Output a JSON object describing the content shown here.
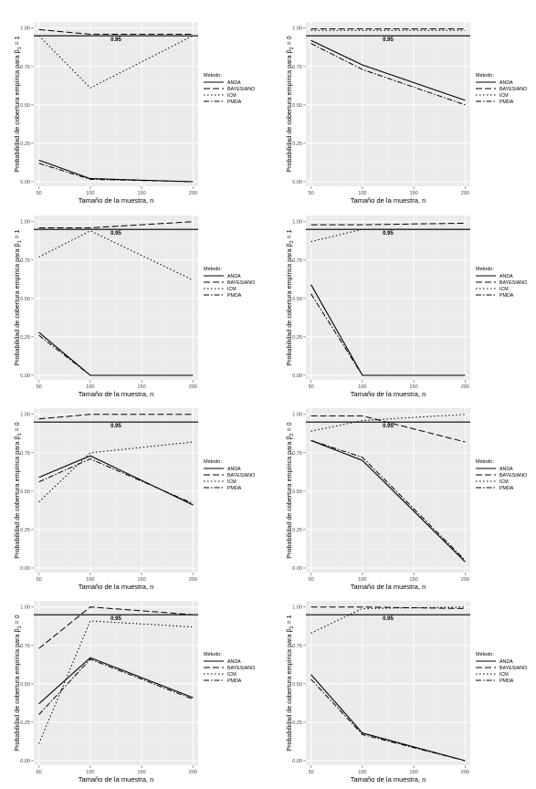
{
  "chart_data": [
    {
      "type": "line",
      "ylabel_pre": "Probabilidad de cobertura empírica para ",
      "ylabel_sym": "β",
      "ylabel_sub": "1",
      "ylabel_post": " = 1",
      "xlabel": "Tamaño de la muestra, n",
      "x": [
        50,
        100,
        200
      ],
      "xticks": [
        50,
        100,
        150,
        200
      ],
      "yticks": [
        "0.00",
        "0.25",
        "0.50",
        "0.75",
        "1.00"
      ],
      "ylim": [
        0,
        1
      ],
      "reference_line": {
        "value": 0.95,
        "label": "0.95"
      },
      "legend": {
        "title": "Método:",
        "entries": [
          "ANDA",
          "BAYESIANO",
          "ICM",
          "PMDA"
        ]
      },
      "series": [
        {
          "name": "ANDA",
          "values": [
            0.14,
            0.02,
            0.0
          ]
        },
        {
          "name": "BAYESIANO",
          "values": [
            0.99,
            0.96,
            0.96
          ]
        },
        {
          "name": "ICM",
          "values": [
            0.95,
            0.61,
            0.95
          ]
        },
        {
          "name": "PMDA",
          "values": [
            0.12,
            0.015,
            0.0
          ]
        }
      ]
    },
    {
      "type": "line",
      "ylabel_pre": "Probabilidad de cobertura empírica para ",
      "ylabel_sym": "β",
      "ylabel_sub": "2",
      "ylabel_post": " = 0",
      "xlabel": "Tamaño de la muestra, n",
      "x": [
        50,
        100,
        200
      ],
      "xticks": [
        50,
        100,
        150,
        200
      ],
      "yticks": [
        "0.00",
        "0.25",
        "0.50",
        "0.75",
        "1.00"
      ],
      "ylim": [
        0,
        1
      ],
      "reference_line": {
        "value": 0.95,
        "label": "0.95"
      },
      "legend": {
        "title": "Método:",
        "entries": [
          "ANDA",
          "BAYESIANO",
          "ICM",
          "PMDA"
        ]
      },
      "series": [
        {
          "name": "ANDA",
          "values": [
            0.92,
            0.76,
            0.53
          ]
        },
        {
          "name": "BAYESIANO",
          "values": [
            0.995,
            0.995,
            0.995
          ]
        },
        {
          "name": "ICM",
          "values": [
            0.985,
            0.985,
            0.985
          ]
        },
        {
          "name": "PMDA",
          "values": [
            0.9,
            0.73,
            0.5
          ]
        }
      ]
    },
    {
      "type": "line",
      "ylabel_pre": "Probabilidad de cobertura empírica para ",
      "ylabel_sym": "β",
      "ylabel_sub": "1",
      "ylabel_post": " = 1",
      "xlabel": "Tamaño de la muestra, n",
      "x": [
        50,
        100,
        200
      ],
      "xticks": [
        50,
        100,
        150,
        200
      ],
      "yticks": [
        "0.00",
        "0.25",
        "0.50",
        "0.75",
        "1.00"
      ],
      "ylim": [
        0,
        1
      ],
      "reference_line": {
        "value": 0.95,
        "label": "0.95"
      },
      "legend": {
        "title": "Método:",
        "entries": [
          "ANDA",
          "BAYESIANO",
          "ICM",
          "PMDA"
        ]
      },
      "series": [
        {
          "name": "ANDA",
          "values": [
            0.28,
            0.0,
            0.0
          ]
        },
        {
          "name": "BAYESIANO",
          "values": [
            0.96,
            0.96,
            1.0
          ]
        },
        {
          "name": "ICM",
          "values": [
            0.77,
            0.94,
            0.62
          ]
        },
        {
          "name": "PMDA",
          "values": [
            0.26,
            0.0,
            0.0
          ]
        }
      ]
    },
    {
      "type": "line",
      "ylabel_pre": "Probabilidad de cobertura empírica para ",
      "ylabel_sym": "β",
      "ylabel_sub": "2",
      "ylabel_post": " = 1",
      "xlabel": "Tamaño de la muestra, n",
      "x": [
        50,
        100,
        200
      ],
      "xticks": [
        50,
        100,
        150,
        200
      ],
      "yticks": [
        "0.00",
        "0.25",
        "0.50",
        "0.75",
        "1.00"
      ],
      "ylim": [
        0,
        1
      ],
      "reference_line": {
        "value": 0.95,
        "label": "0.95"
      },
      "legend": {
        "title": "Método:",
        "entries": [
          "ANDA",
          "BAYESIANO",
          "ICM",
          "PMDA"
        ]
      },
      "series": [
        {
          "name": "ANDA",
          "values": [
            0.59,
            0.0,
            0.0
          ]
        },
        {
          "name": "BAYESIANO",
          "values": [
            0.98,
            0.98,
            0.99
          ]
        },
        {
          "name": "ICM",
          "values": [
            0.87,
            0.95,
            0.95
          ]
        },
        {
          "name": "PMDA",
          "values": [
            0.53,
            0.0,
            0.0
          ]
        }
      ]
    },
    {
      "type": "line",
      "ylabel_pre": "Probabilidad de cobertura empírica para ",
      "ylabel_sym": "β",
      "ylabel_sub": "1",
      "ylabel_post": " = 0",
      "xlabel": "Tamaño de la muestra, n",
      "x": [
        50,
        100,
        200
      ],
      "xticks": [
        50,
        100,
        150,
        200
      ],
      "yticks": [
        "0.00",
        "0.25",
        "0.50",
        "0.75",
        "1.00"
      ],
      "ylim": [
        0,
        1
      ],
      "reference_line": {
        "value": 0.95,
        "label": "0.95"
      },
      "legend": {
        "title": "Método:",
        "entries": [
          "ANDA",
          "BAYESIANO",
          "ICM",
          "PMDA"
        ]
      },
      "series": [
        {
          "name": "ANDA",
          "values": [
            0.59,
            0.73,
            0.41
          ]
        },
        {
          "name": "BAYESIANO",
          "values": [
            0.97,
            1.0,
            1.0
          ]
        },
        {
          "name": "ICM",
          "values": [
            0.43,
            0.75,
            0.82
          ]
        },
        {
          "name": "PMDA",
          "values": [
            0.56,
            0.71,
            0.42
          ]
        }
      ]
    },
    {
      "type": "line",
      "ylabel_pre": "Probabilidad de cobertura empírica para ",
      "ylabel_sym": "β",
      "ylabel_sub": "2",
      "ylabel_post": " = 0",
      "xlabel": "Tamaño de la muestra, n",
      "x": [
        50,
        100,
        200
      ],
      "xticks": [
        50,
        100,
        150,
        200
      ],
      "yticks": [
        "0.00",
        "0.25",
        "0.50",
        "0.75",
        "1.00"
      ],
      "ylim": [
        0,
        1
      ],
      "reference_line": {
        "value": 0.95,
        "label": "0.95"
      },
      "legend": {
        "title": "Método:",
        "entries": [
          "ANDA",
          "BAYESIANO",
          "ICM",
          "PMDA"
        ]
      },
      "series": [
        {
          "name": "ANDA",
          "values": [
            0.83,
            0.7,
            0.04
          ]
        },
        {
          "name": "BAYESIANO",
          "values": [
            0.99,
            0.99,
            0.82
          ]
        },
        {
          "name": "ICM",
          "values": [
            0.89,
            0.96,
            1.0
          ]
        },
        {
          "name": "PMDA",
          "values": [
            0.83,
            0.72,
            0.05
          ]
        }
      ]
    },
    {
      "type": "line",
      "ylabel_pre": "Probabilidad de cobertura empírica para ",
      "ylabel_sym": "β",
      "ylabel_sub": "1",
      "ylabel_post": " = 0",
      "xlabel": "Tamaño de la muestra, n",
      "x": [
        50,
        100,
        200
      ],
      "xticks": [
        50,
        100,
        150,
        200
      ],
      "yticks": [
        "0.00",
        "0.25",
        "0.50",
        "0.75",
        "1.00"
      ],
      "ylim": [
        0,
        1
      ],
      "reference_line": {
        "value": 0.95,
        "label": "0.95"
      },
      "legend": {
        "title": "Método:",
        "entries": [
          "ANDA",
          "BAYESIANO",
          "ICM",
          "PMDA"
        ]
      },
      "series": [
        {
          "name": "ANDA",
          "values": [
            0.37,
            0.67,
            0.41
          ]
        },
        {
          "name": "BAYESIANO",
          "values": [
            0.73,
            1.0,
            0.95
          ]
        },
        {
          "name": "ICM",
          "values": [
            0.11,
            0.91,
            0.87
          ]
        },
        {
          "name": "PMDA",
          "values": [
            0.3,
            0.66,
            0.4
          ]
        }
      ]
    },
    {
      "type": "line",
      "ylabel_pre": "Probabilidad de cobertura empírica para ",
      "ylabel_sym": "β",
      "ylabel_sub": "2",
      "ylabel_post": " = 1",
      "xlabel": "Tamaño de la muestra, n",
      "x": [
        50,
        100,
        200
      ],
      "xticks": [
        50,
        100,
        150,
        200
      ],
      "yticks": [
        "0.00",
        "0.25",
        "0.50",
        "0.75",
        "1.00"
      ],
      "ylim": [
        0,
        1
      ],
      "reference_line": {
        "value": 0.95,
        "label": "0.95"
      },
      "legend": {
        "title": "Método:",
        "entries": [
          "ANDA",
          "BAYESIANO",
          "ICM",
          "PMDA"
        ]
      },
      "series": [
        {
          "name": "ANDA",
          "values": [
            0.56,
            0.18,
            0.0
          ]
        },
        {
          "name": "BAYESIANO",
          "values": [
            1.0,
            1.0,
            0.99
          ]
        },
        {
          "name": "ICM",
          "values": [
            0.83,
            0.99,
            1.0
          ]
        },
        {
          "name": "PMDA",
          "values": [
            0.53,
            0.17,
            0.0
          ]
        }
      ]
    }
  ]
}
